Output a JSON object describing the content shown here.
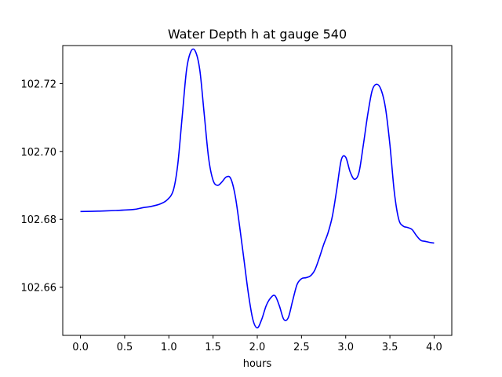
{
  "chart_data": {
    "type": "line",
    "title": "Water Depth h at gauge 540",
    "xlabel": "hours",
    "ylabel": "",
    "xlim": [
      -0.2,
      4.2
    ],
    "ylim": [
      102.6458,
      102.7312
    ],
    "xticks": [
      0.0,
      0.5,
      1.0,
      1.5,
      2.0,
      2.5,
      3.0,
      3.5,
      4.0
    ],
    "xtick_labels": [
      "0.0",
      "0.5",
      "1.0",
      "1.5",
      "2.0",
      "2.5",
      "3.0",
      "3.5",
      "4.0"
    ],
    "yticks": [
      102.66,
      102.68,
      102.7,
      102.72
    ],
    "ytick_labels": [
      "102.66",
      "102.68",
      "102.70",
      "102.72"
    ],
    "grid": false,
    "series": [
      {
        "color": "#0000ff",
        "x": [
          0.0,
          0.2,
          0.4,
          0.6,
          0.7,
          0.8,
          0.9,
          0.98,
          1.05,
          1.1,
          1.15,
          1.2,
          1.25,
          1.3,
          1.35,
          1.4,
          1.45,
          1.5,
          1.55,
          1.6,
          1.65,
          1.7,
          1.75,
          1.8,
          1.85,
          1.9,
          1.95,
          2.0,
          2.05,
          2.1,
          2.15,
          2.2,
          2.25,
          2.3,
          2.35,
          2.4,
          2.45,
          2.5,
          2.55,
          2.6,
          2.65,
          2.7,
          2.75,
          2.8,
          2.85,
          2.9,
          2.95,
          3.0,
          3.05,
          3.1,
          3.15,
          3.2,
          3.25,
          3.3,
          3.35,
          3.4,
          3.45,
          3.5,
          3.55,
          3.6,
          3.65,
          3.7,
          3.75,
          3.8,
          3.85,
          3.9,
          3.95,
          4.0
        ],
        "y": [
          102.6823,
          102.6824,
          102.6826,
          102.6829,
          102.6834,
          102.6838,
          102.6845,
          102.6857,
          102.6885,
          102.696,
          102.71,
          102.724,
          102.7295,
          102.7295,
          102.724,
          102.711,
          102.698,
          102.6915,
          102.69,
          102.691,
          102.6925,
          102.692,
          102.687,
          102.678,
          102.668,
          102.658,
          102.6505,
          102.648,
          102.6505,
          102.6545,
          102.6568,
          102.6575,
          102.6545,
          102.6505,
          102.651,
          102.656,
          102.6608,
          102.6625,
          102.6628,
          102.6633,
          102.665,
          102.6685,
          102.6725,
          102.676,
          102.681,
          102.689,
          102.6975,
          102.6983,
          102.694,
          102.6918,
          102.6938,
          102.702,
          102.711,
          102.718,
          102.7198,
          102.7182,
          102.7128,
          102.702,
          102.688,
          102.68,
          102.678,
          102.6776,
          102.677,
          102.6752,
          102.6738,
          102.6735,
          102.6732,
          102.673
        ]
      }
    ]
  }
}
